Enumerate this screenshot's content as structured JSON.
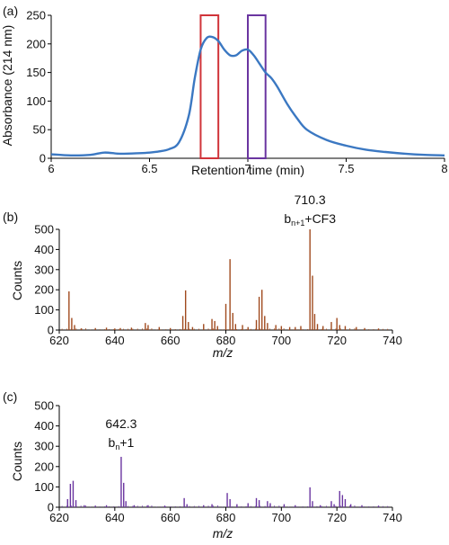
{
  "chart_data": [
    {
      "panel_label": "(a)",
      "type": "line",
      "xlabel": "Retention time (min)",
      "ylabel": "Absorbance (214 nm)",
      "xlim": [
        6,
        8
      ],
      "ylim": [
        0,
        250
      ],
      "xticks": [
        "6",
        "6.5",
        "7",
        "7.5",
        "8"
      ],
      "yticks": [
        "0",
        "50",
        "100",
        "150",
        "200",
        "250"
      ],
      "series": [
        {
          "color": "#3b78c2",
          "x": [
            6.0,
            6.1,
            6.2,
            6.27,
            6.35,
            6.45,
            6.5,
            6.55,
            6.6,
            6.65,
            6.7,
            6.73,
            6.76,
            6.79,
            6.82,
            6.85,
            6.88,
            6.91,
            6.94,
            6.97,
            7.0,
            7.03,
            7.06,
            7.09,
            7.12,
            7.15,
            7.2,
            7.25,
            7.3,
            7.4,
            7.5,
            7.6,
            7.7,
            7.8,
            7.9,
            8.0
          ],
          "y": [
            7,
            5,
            6,
            10,
            8,
            9,
            10,
            12,
            16,
            28,
            75,
            140,
            190,
            210,
            212,
            205,
            190,
            180,
            180,
            188,
            190,
            180,
            165,
            150,
            140,
            125,
            95,
            70,
            50,
            32,
            22,
            15,
            11,
            8,
            6,
            5
          ]
        }
      ],
      "highlight_windows": [
        {
          "x_range": [
            6.76,
            6.85
          ],
          "color": "#d0343a"
        },
        {
          "x_range": [
            7.0,
            7.09
          ],
          "color": "#6a35a0"
        }
      ]
    },
    {
      "panel_label": "(b)",
      "type": "bar",
      "xlabel_italic": "m/z",
      "ylabel": "Counts",
      "xlim": [
        620,
        740
      ],
      "ylim": [
        0,
        500
      ],
      "xticks": [
        "620",
        "640",
        "660",
        "680",
        "700",
        "720",
        "740"
      ],
      "yticks": [
        "0",
        "100",
        "200",
        "300",
        "400",
        "500"
      ],
      "color": "#a04a1e",
      "peaks": [
        [
          623.5,
          192
        ],
        [
          624.5,
          60
        ],
        [
          625.5,
          25
        ],
        [
          628,
          8
        ],
        [
          633,
          10
        ],
        [
          637,
          12
        ],
        [
          640,
          8
        ],
        [
          642,
          10
        ],
        [
          646,
          12
        ],
        [
          651,
          35
        ],
        [
          652,
          25
        ],
        [
          656,
          15
        ],
        [
          660,
          10
        ],
        [
          664.5,
          70
        ],
        [
          665.5,
          197
        ],
        [
          666.5,
          40
        ],
        [
          668,
          15
        ],
        [
          672,
          30
        ],
        [
          675,
          55
        ],
        [
          676,
          45
        ],
        [
          677,
          20
        ],
        [
          680,
          130
        ],
        [
          681.5,
          352
        ],
        [
          682.5,
          85
        ],
        [
          683.5,
          30
        ],
        [
          686,
          25
        ],
        [
          688,
          15
        ],
        [
          691,
          50
        ],
        [
          692,
          165
        ],
        [
          693,
          200
        ],
        [
          694,
          70
        ],
        [
          695,
          35
        ],
        [
          698,
          25
        ],
        [
          700,
          20
        ],
        [
          703,
          15
        ],
        [
          705,
          15
        ],
        [
          707,
          20
        ],
        [
          710.3,
          500
        ],
        [
          711.2,
          270
        ],
        [
          712,
          80
        ],
        [
          713,
          30
        ],
        [
          715,
          20
        ],
        [
          718,
          40
        ],
        [
          720,
          60
        ],
        [
          721,
          25
        ],
        [
          723,
          20
        ],
        [
          727,
          15
        ],
        [
          730,
          10
        ],
        [
          735,
          8
        ]
      ],
      "annotation": {
        "mz": "710.3",
        "ion": "b",
        "subscript": "n+1",
        "suffix": "+CF3",
        "x": 710.3
      }
    },
    {
      "panel_label": "(c)",
      "type": "bar",
      "xlabel_italic": "m/z",
      "ylabel": "Counts",
      "xlim": [
        620,
        740
      ],
      "ylim": [
        0,
        500
      ],
      "xticks": [
        "620",
        "640",
        "660",
        "680",
        "700",
        "720",
        "740"
      ],
      "yticks": [
        "0",
        "100",
        "200",
        "300",
        "400",
        "500"
      ],
      "color": "#6a35a0",
      "peaks": [
        [
          623,
          40
        ],
        [
          624,
          115
        ],
        [
          625,
          130
        ],
        [
          626,
          35
        ],
        [
          629,
          10
        ],
        [
          633,
          8
        ],
        [
          637,
          10
        ],
        [
          642.3,
          248
        ],
        [
          643.2,
          120
        ],
        [
          644,
          30
        ],
        [
          647,
          10
        ],
        [
          652,
          10
        ],
        [
          658,
          8
        ],
        [
          665,
          45
        ],
        [
          666,
          15
        ],
        [
          672,
          10
        ],
        [
          675,
          15
        ],
        [
          680.5,
          70
        ],
        [
          681.5,
          40
        ],
        [
          684,
          15
        ],
        [
          688,
          20
        ],
        [
          691,
          45
        ],
        [
          692,
          35
        ],
        [
          695,
          30
        ],
        [
          696,
          20
        ],
        [
          701,
          15
        ],
        [
          705,
          10
        ],
        [
          710.3,
          98
        ],
        [
          711.2,
          30
        ],
        [
          714,
          10
        ],
        [
          718,
          30
        ],
        [
          719,
          15
        ],
        [
          721,
          80
        ],
        [
          722,
          60
        ],
        [
          723,
          40
        ],
        [
          725,
          15
        ],
        [
          729,
          10
        ],
        [
          735,
          8
        ]
      ],
      "annotation": {
        "mz": "642.3",
        "ion": "b",
        "subscript": "n",
        "suffix": "+1",
        "x": 642.3
      }
    }
  ]
}
